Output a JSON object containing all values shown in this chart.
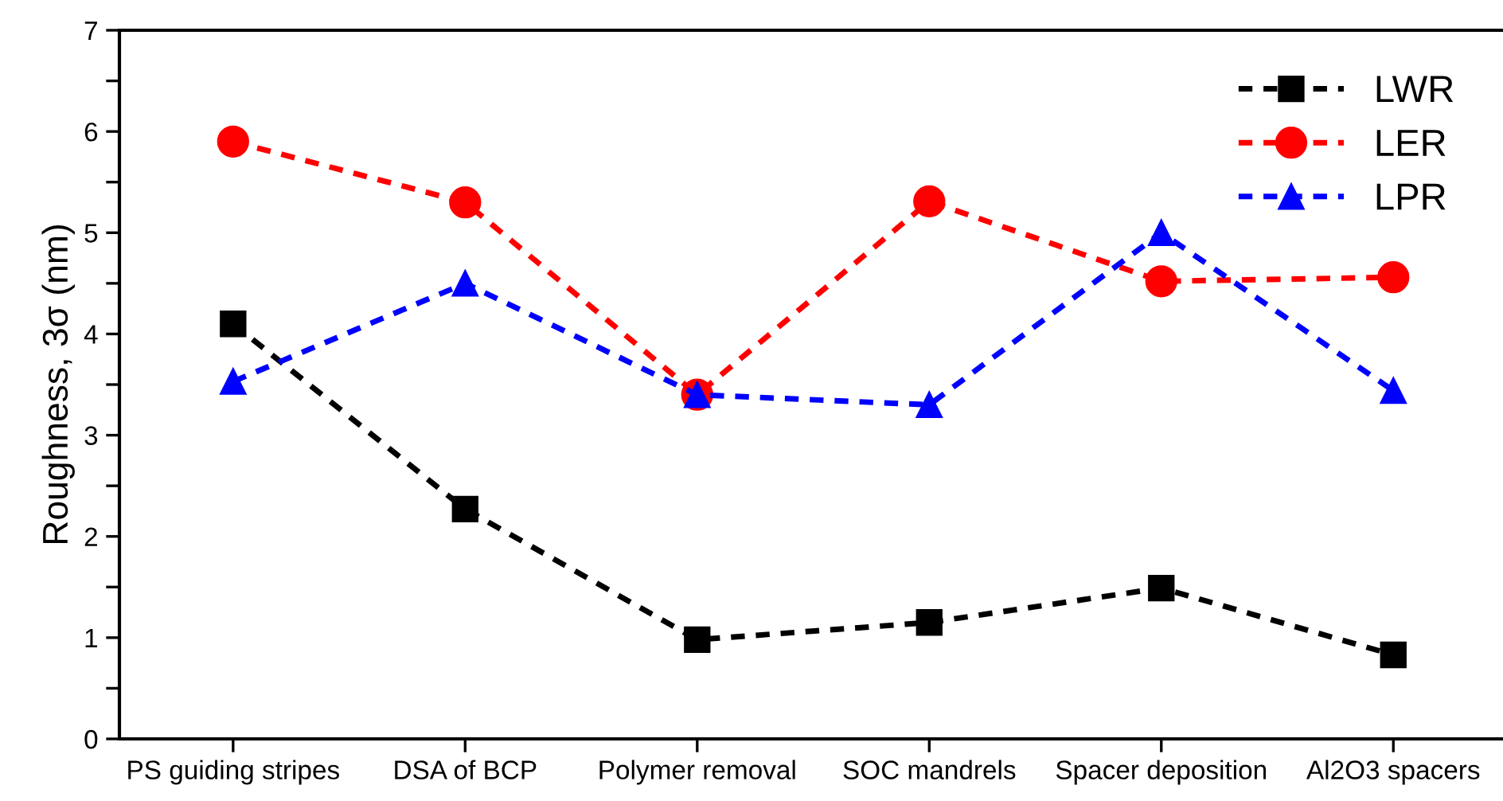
{
  "chart_data": {
    "type": "line",
    "ylabel": "Roughness, 3σ (nm)",
    "categories": [
      "PS guiding stripes",
      "DSA of BCP",
      "Polymer removal",
      "SOC mandrels",
      "Spacer deposition",
      "Al2O3 spacers"
    ],
    "series": [
      {
        "name": "LWR",
        "color": "#000000",
        "marker": "square",
        "values": [
          4.1,
          2.27,
          0.98,
          1.15,
          1.49,
          0.83
        ]
      },
      {
        "name": "LER",
        "color": "#ff0000",
        "marker": "circle",
        "values": [
          5.9,
          5.3,
          3.4,
          5.31,
          4.52,
          4.56
        ]
      },
      {
        "name": "LPR",
        "color": "#0000ff",
        "marker": "triangle",
        "values": [
          3.53,
          4.5,
          3.4,
          3.3,
          5.0,
          3.44
        ]
      }
    ],
    "line_style": "dashed",
    "ylim": [
      0,
      7
    ],
    "yticks": [
      0,
      {
        "value": 0.5,
        "label": null
      },
      1,
      {
        "value": 1.5,
        "label": null
      },
      2,
      {
        "value": 2.5,
        "label": null
      },
      3,
      {
        "value": 3.5,
        "label": null
      },
      4,
      {
        "value": 4.5,
        "label": null
      },
      5,
      {
        "value": 5.5,
        "label": null
      },
      6,
      {
        "value": 6.5,
        "label": null
      },
      7
    ],
    "grid": false,
    "legend": "top right"
  }
}
